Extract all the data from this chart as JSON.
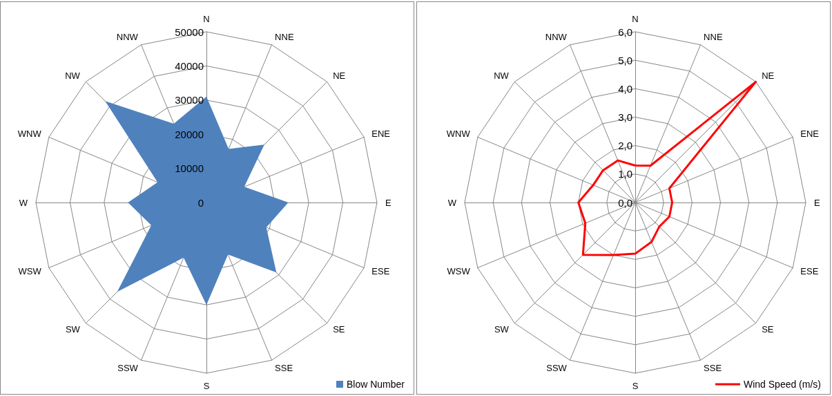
{
  "chart_data": [
    {
      "type": "radar",
      "categories": [
        "N",
        "NNE",
        "NE",
        "ENE",
        "E",
        "ESE",
        "SE",
        "SSE",
        "S",
        "SSW",
        "SW",
        "WSW",
        "W",
        "WNW",
        "NW",
        "NNW"
      ],
      "series": [
        {
          "name": "Blow Number",
          "type": "area",
          "color": "#4f81bd",
          "values": [
            31000,
            17000,
            24000,
            12000,
            24000,
            19000,
            29000,
            16500,
            30000,
            17500,
            37000,
            17500,
            23000,
            15500,
            42000,
            25000
          ]
        }
      ],
      "ylim": [
        0,
        50000
      ],
      "yticks": [
        {
          "value": 0,
          "label": "0"
        },
        {
          "value": 10000,
          "label": "10000"
        },
        {
          "value": 20000,
          "label": "20000"
        },
        {
          "value": 30000,
          "label": "30000"
        },
        {
          "value": 40000,
          "label": "40000"
        },
        {
          "value": 50000,
          "label": "50000"
        }
      ],
      "grid": true,
      "legend": "bottom right",
      "marker": "none"
    },
    {
      "type": "radar",
      "categories": [
        "N",
        "NNE",
        "NE",
        "ENE",
        "E",
        "ESE",
        "SE",
        "SSE",
        "S",
        "SSW",
        "SW",
        "WSW",
        "W",
        "WNW",
        "NW",
        "NNW"
      ],
      "series": [
        {
          "name": "Wind Speed (m/s)",
          "color": "#ff0000",
          "values": [
            1.3,
            1.4,
            6.0,
            1.3,
            1.3,
            1.3,
            1.2,
            1.5,
            1.8,
            2.0,
            2.6,
            1.9,
            2.0,
            1.6,
            1.6,
            1.6
          ]
        }
      ],
      "ylim": [
        0,
        6
      ],
      "yticks": [
        {
          "value": 0,
          "label": "0,0"
        },
        {
          "value": 1,
          "label": "1,0"
        },
        {
          "value": 2,
          "label": "2,0"
        },
        {
          "value": 3,
          "label": "3,0"
        },
        {
          "value": 4,
          "label": "4,0"
        },
        {
          "value": 5,
          "label": "5,0"
        },
        {
          "value": 6,
          "label": "6,0"
        }
      ],
      "grid": true,
      "legend": "bottom right",
      "marker": "none"
    }
  ]
}
